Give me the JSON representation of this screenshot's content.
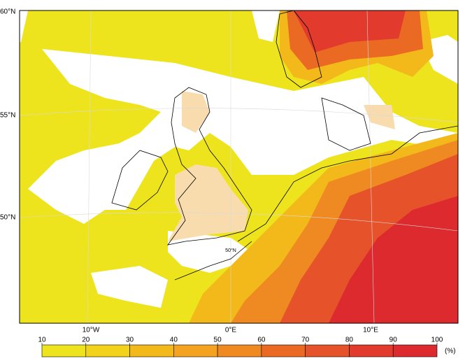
{
  "map": {
    "lat_labels": [
      "60°N",
      "55°N",
      "50°N"
    ],
    "lon_labels": [
      "10°W",
      "0°E",
      "10°E"
    ],
    "inner_label": "50°N"
  },
  "colorbar": {
    "ticks": [
      10,
      20,
      30,
      40,
      50,
      60,
      70,
      80,
      90,
      100
    ],
    "colors": [
      "#eee41e",
      "#f2d21a",
      "#f3b81a",
      "#f4a21f",
      "#ef8a22",
      "#ea6a24",
      "#e6522a",
      "#e23a2c",
      "#dc2a2f"
    ],
    "unit": "(%)"
  }
}
